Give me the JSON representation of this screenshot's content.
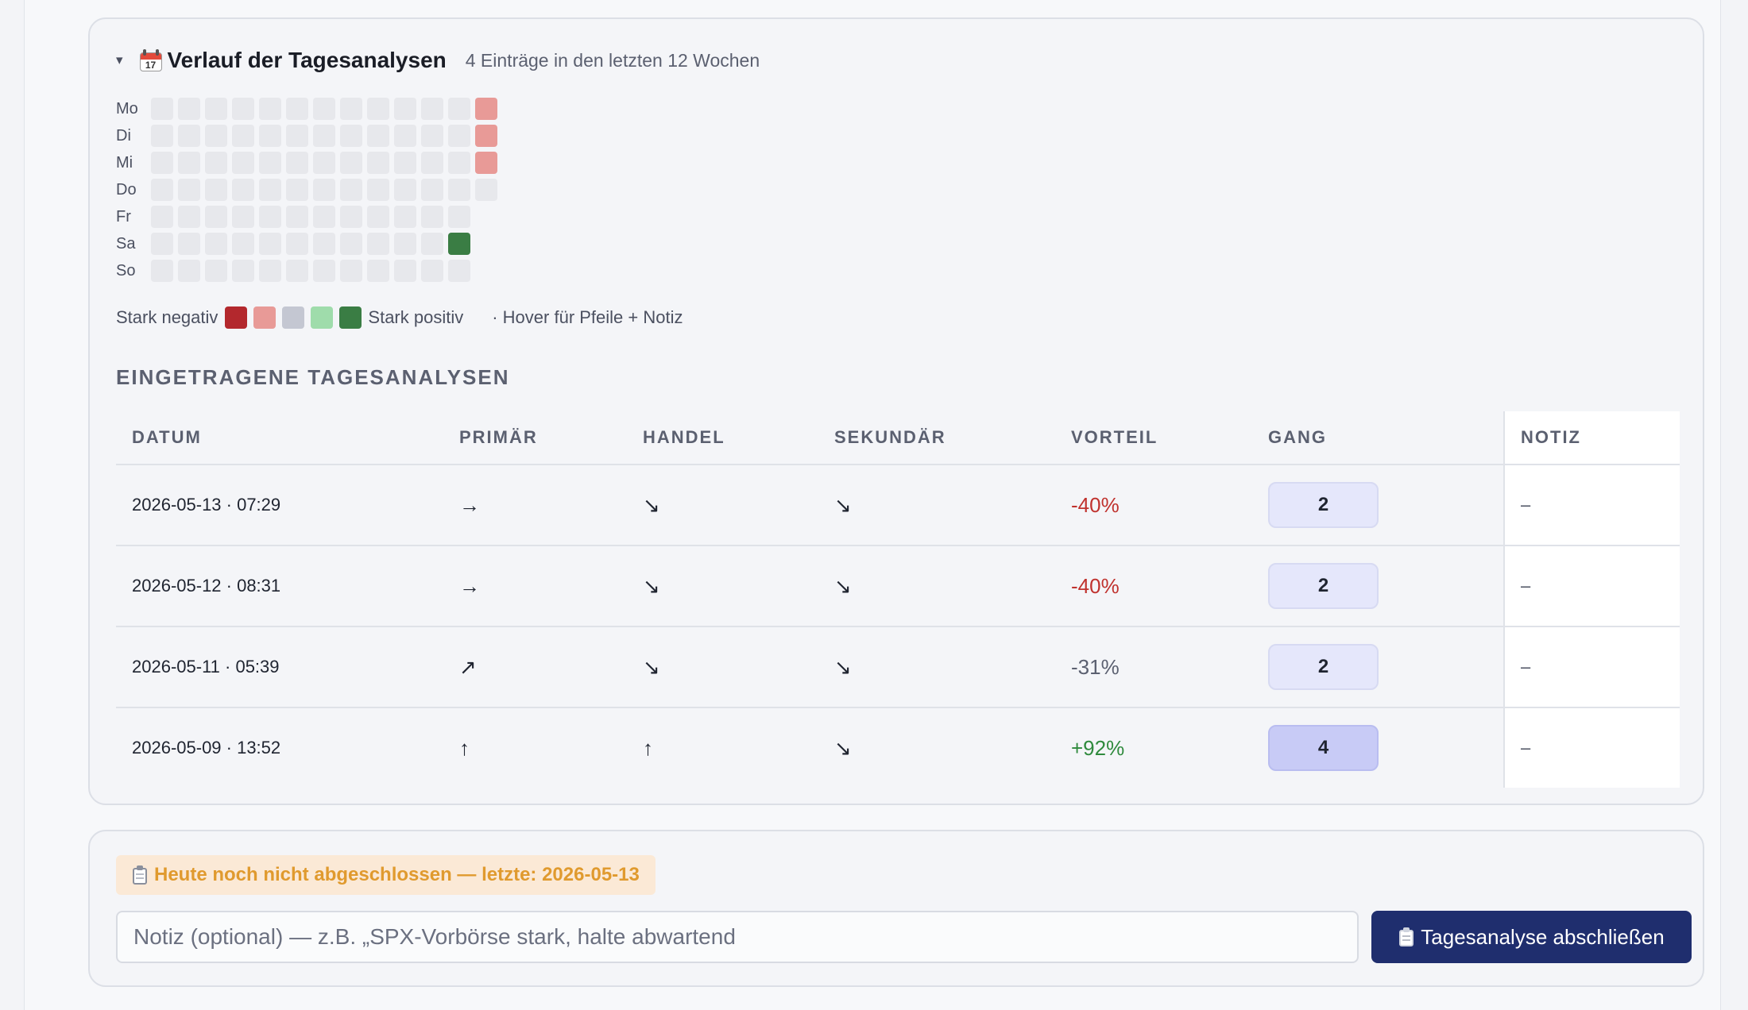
{
  "history": {
    "toggle_symbol": "▾",
    "icon": "calendar-icon",
    "icon_day": "17",
    "title": "Verlauf der Tagesanalysen",
    "subtitle": "4 Einträge in den letzten 12 Wochen",
    "heatmap": {
      "days": [
        "Mo",
        "Di",
        "Mi",
        "Do",
        "Fr",
        "Sa",
        "So"
      ],
      "weeks": 13,
      "rows": [
        [
          "e",
          "e",
          "e",
          "e",
          "e",
          "e",
          "e",
          "e",
          "e",
          "e",
          "e",
          "e",
          "neg"
        ],
        [
          "e",
          "e",
          "e",
          "e",
          "e",
          "e",
          "e",
          "e",
          "e",
          "e",
          "e",
          "e",
          "neg"
        ],
        [
          "e",
          "e",
          "e",
          "e",
          "e",
          "e",
          "e",
          "e",
          "e",
          "e",
          "e",
          "e",
          "neg"
        ],
        [
          "e",
          "e",
          "e",
          "e",
          "e",
          "e",
          "e",
          "e",
          "e",
          "e",
          "e",
          "e",
          "e"
        ],
        [
          "e",
          "e",
          "e",
          "e",
          "e",
          "e",
          "e",
          "e",
          "e",
          "e",
          "e",
          "e",
          "none"
        ],
        [
          "e",
          "e",
          "e",
          "e",
          "e",
          "e",
          "e",
          "e",
          "e",
          "e",
          "e",
          "spos",
          "none"
        ],
        [
          "e",
          "e",
          "e",
          "e",
          "e",
          "e",
          "e",
          "e",
          "e",
          "e",
          "e",
          "e",
          "none"
        ]
      ]
    },
    "legend": {
      "negative_label": "Stark negativ",
      "positive_label": "Stark positiv",
      "hint": "· Hover für Pfeile + Notiz",
      "colors": [
        "#b3282d",
        "#e89a97",
        "#c4c7d2",
        "#9fdcab",
        "#3a7d44"
      ]
    },
    "section_title": "EINGETRAGENE TAGESANALYSEN",
    "table": {
      "headers": {
        "date": "DATUM",
        "primary": "PRIMÄR",
        "trade": "HANDEL",
        "secondary": "SEKUNDÄR",
        "advantage": "VORTEIL",
        "gear": "GANG",
        "note": "NOTIZ"
      },
      "rows": [
        {
          "date": "2026-05-13 · 07:29",
          "primary": "→",
          "trade": "↘",
          "secondary": "↘",
          "advantage": "-40%",
          "gear": "2",
          "note": "–"
        },
        {
          "date": "2026-05-12 · 08:31",
          "primary": "→",
          "trade": "↘",
          "secondary": "↘",
          "advantage": "-40%",
          "gear": "2",
          "note": "–"
        },
        {
          "date": "2026-05-11 · 05:39",
          "primary": "↗",
          "trade": "↘",
          "secondary": "↘",
          "advantage": "-31%",
          "gear": "2",
          "note": "–"
        },
        {
          "date": "2026-05-09 · 13:52",
          "primary": "↑",
          "trade": "↑",
          "secondary": "↘",
          "advantage": "+92%",
          "gear": "4",
          "note": "–"
        }
      ]
    }
  },
  "close_panel": {
    "status_icon": "clipboard-icon",
    "status_text": "Heute noch nicht abgeschlossen — letzte: 2026-05-13",
    "note_placeholder": "Notiz (optional) — z.B. „SPX-Vorbörse stark, halte abwartend",
    "note_value": "",
    "submit_label": "Tagesanalyse abschließen",
    "accent_color": "#1f2e6e",
    "status_color": "#e09a2e"
  }
}
